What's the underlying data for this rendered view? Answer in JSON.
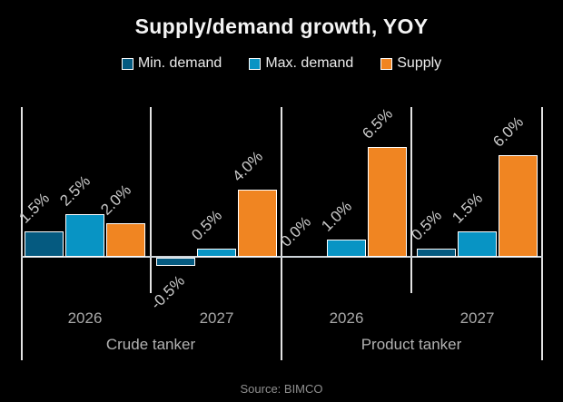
{
  "title": "Supply/demand growth, YOY",
  "source_note": "Source: BIMCO",
  "legend": {
    "items": [
      {
        "label": "Min. demand",
        "color": "#055a80"
      },
      {
        "label": "Max. demand",
        "color": "#0894c4"
      },
      {
        "label": "Supply",
        "color": "#f08522"
      }
    ]
  },
  "colors": {
    "background": "#000000",
    "min_demand": "#055a80",
    "max_demand": "#0894c4",
    "supply": "#f08522",
    "axis_line": "#e3e3e3",
    "bar_outline": "#ffffff",
    "title_text": "#f4f4f4",
    "value_label_text": "#cbcbcb",
    "axis_label_text": "#a8a8a8",
    "source_text": "#8f8f8f"
  },
  "chart_data": {
    "type": "bar",
    "title": "Supply/demand growth, YOY",
    "unit": "percent YOY",
    "series": [
      "Min. demand",
      "Max. demand",
      "Supply"
    ],
    "categories": [
      "Crude tanker",
      "Product tanker"
    ],
    "years": [
      "2026",
      "2027"
    ],
    "groups": [
      {
        "category": "Crude tanker",
        "year": "2026",
        "values": [
          1.5,
          2.5,
          2.0
        ],
        "labels": [
          "1.5%",
          "2.5%",
          "2.0%"
        ]
      },
      {
        "category": "Crude tanker",
        "year": "2027",
        "values": [
          -0.5,
          0.5,
          4.0
        ],
        "labels": [
          "-0.5%",
          "0.5%",
          "4.0%"
        ]
      },
      {
        "category": "Product tanker",
        "year": "2026",
        "values": [
          0.0,
          1.0,
          6.5
        ],
        "labels": [
          "0.0%",
          "1.0%",
          "6.5%"
        ]
      },
      {
        "category": "Product tanker",
        "year": "2027",
        "values": [
          0.5,
          1.5,
          6.0
        ],
        "labels": [
          "0.5%",
          "1.5%",
          "6.0%"
        ]
      }
    ],
    "ylim": [
      -1,
      9
    ],
    "grid": false,
    "legend_position": "top",
    "value_labels_rotated_degrees": 45,
    "source": "Source: BIMCO"
  }
}
